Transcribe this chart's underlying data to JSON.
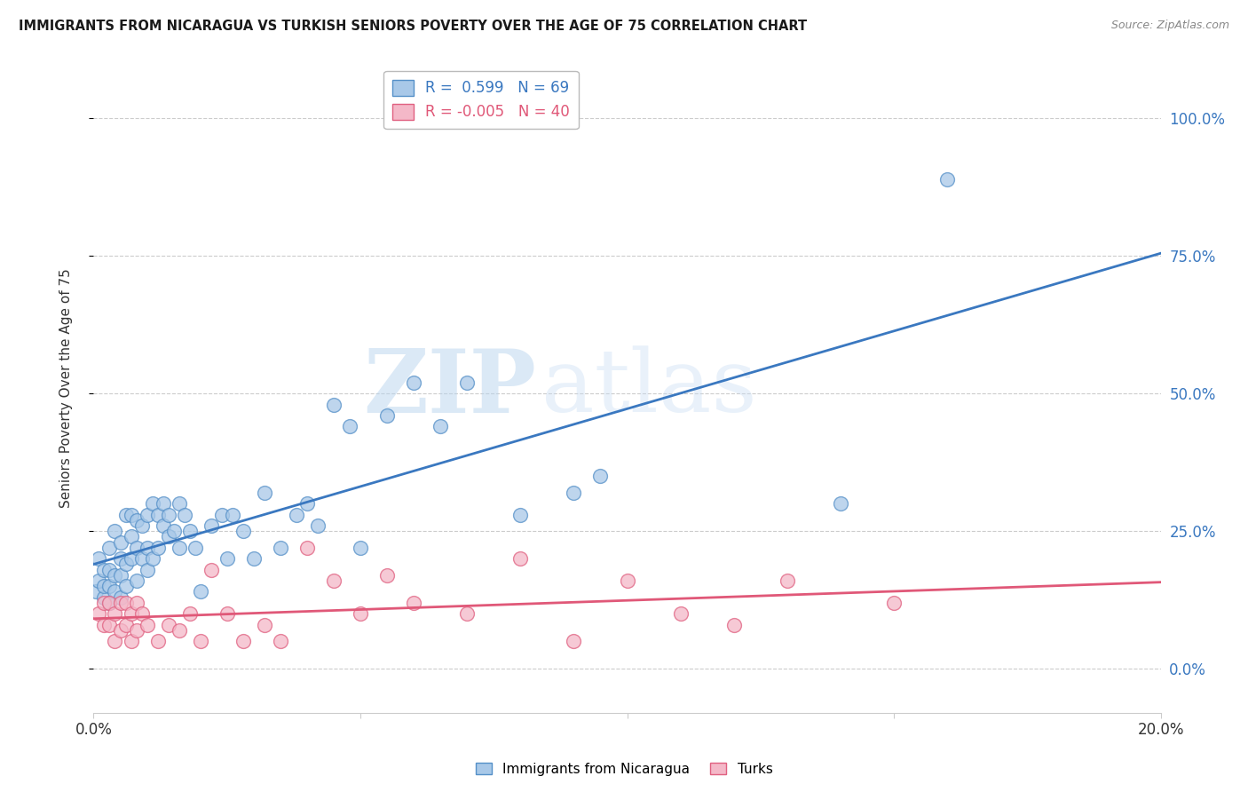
{
  "title": "IMMIGRANTS FROM NICARAGUA VS TURKISH SENIORS POVERTY OVER THE AGE OF 75 CORRELATION CHART",
  "source": "Source: ZipAtlas.com",
  "ylabel": "Seniors Poverty Over the Age of 75",
  "blue_R": 0.599,
  "blue_N": 69,
  "pink_R": -0.005,
  "pink_N": 40,
  "blue_color": "#a8c8e8",
  "pink_color": "#f4b8c8",
  "blue_edge_color": "#5590c8",
  "pink_edge_color": "#e06080",
  "blue_line_color": "#3a78c0",
  "pink_line_color": "#e05878",
  "watermark_zip": "ZIP",
  "watermark_atlas": "atlas",
  "legend_blue_label": "Immigrants from Nicaragua",
  "legend_pink_label": "Turks",
  "blue_points_x": [
    0.0005,
    0.001,
    0.001,
    0.002,
    0.002,
    0.002,
    0.003,
    0.003,
    0.003,
    0.003,
    0.004,
    0.004,
    0.004,
    0.005,
    0.005,
    0.005,
    0.005,
    0.006,
    0.006,
    0.006,
    0.007,
    0.007,
    0.007,
    0.008,
    0.008,
    0.008,
    0.009,
    0.009,
    0.01,
    0.01,
    0.01,
    0.011,
    0.011,
    0.012,
    0.012,
    0.013,
    0.013,
    0.014,
    0.014,
    0.015,
    0.016,
    0.016,
    0.017,
    0.018,
    0.019,
    0.02,
    0.022,
    0.024,
    0.025,
    0.026,
    0.028,
    0.03,
    0.032,
    0.035,
    0.038,
    0.04,
    0.042,
    0.045,
    0.048,
    0.05,
    0.055,
    0.06,
    0.065,
    0.07,
    0.08,
    0.09,
    0.095,
    0.14,
    0.16
  ],
  "blue_points_y": [
    0.14,
    0.16,
    0.2,
    0.13,
    0.15,
    0.18,
    0.12,
    0.15,
    0.18,
    0.22,
    0.14,
    0.17,
    0.25,
    0.13,
    0.17,
    0.2,
    0.23,
    0.15,
    0.19,
    0.28,
    0.2,
    0.24,
    0.28,
    0.16,
    0.22,
    0.27,
    0.2,
    0.26,
    0.18,
    0.22,
    0.28,
    0.2,
    0.3,
    0.22,
    0.28,
    0.26,
    0.3,
    0.24,
    0.28,
    0.25,
    0.22,
    0.3,
    0.28,
    0.25,
    0.22,
    0.14,
    0.26,
    0.28,
    0.2,
    0.28,
    0.25,
    0.2,
    0.32,
    0.22,
    0.28,
    0.3,
    0.26,
    0.48,
    0.44,
    0.22,
    0.46,
    0.52,
    0.44,
    0.52,
    0.28,
    0.32,
    0.35,
    0.3,
    0.89
  ],
  "pink_points_x": [
    0.001,
    0.002,
    0.002,
    0.003,
    0.003,
    0.004,
    0.004,
    0.005,
    0.005,
    0.006,
    0.006,
    0.007,
    0.007,
    0.008,
    0.008,
    0.009,
    0.01,
    0.012,
    0.014,
    0.016,
    0.018,
    0.02,
    0.022,
    0.025,
    0.028,
    0.032,
    0.035,
    0.04,
    0.045,
    0.05,
    0.055,
    0.06,
    0.07,
    0.08,
    0.09,
    0.1,
    0.11,
    0.12,
    0.13,
    0.15
  ],
  "pink_points_y": [
    0.1,
    0.08,
    0.12,
    0.08,
    0.12,
    0.1,
    0.05,
    0.07,
    0.12,
    0.08,
    0.12,
    0.05,
    0.1,
    0.07,
    0.12,
    0.1,
    0.08,
    0.05,
    0.08,
    0.07,
    0.1,
    0.05,
    0.18,
    0.1,
    0.05,
    0.08,
    0.05,
    0.22,
    0.16,
    0.1,
    0.17,
    0.12,
    0.1,
    0.2,
    0.05,
    0.16,
    0.1,
    0.08,
    0.16,
    0.12
  ],
  "xlim": [
    0.0,
    0.2
  ],
  "ylim": [
    -0.08,
    1.1
  ],
  "yticks": [
    0.0,
    0.25,
    0.5,
    0.75,
    1.0
  ],
  "yticklabels": [
    "0.0%",
    "25.0%",
    "50.0%",
    "75.0%",
    "100.0%"
  ],
  "xtick_positions": [
    0.0,
    0.05,
    0.1,
    0.15,
    0.2
  ],
  "xtick_labels_show": [
    "0.0%",
    "",
    "",
    "",
    "20.0%"
  ]
}
